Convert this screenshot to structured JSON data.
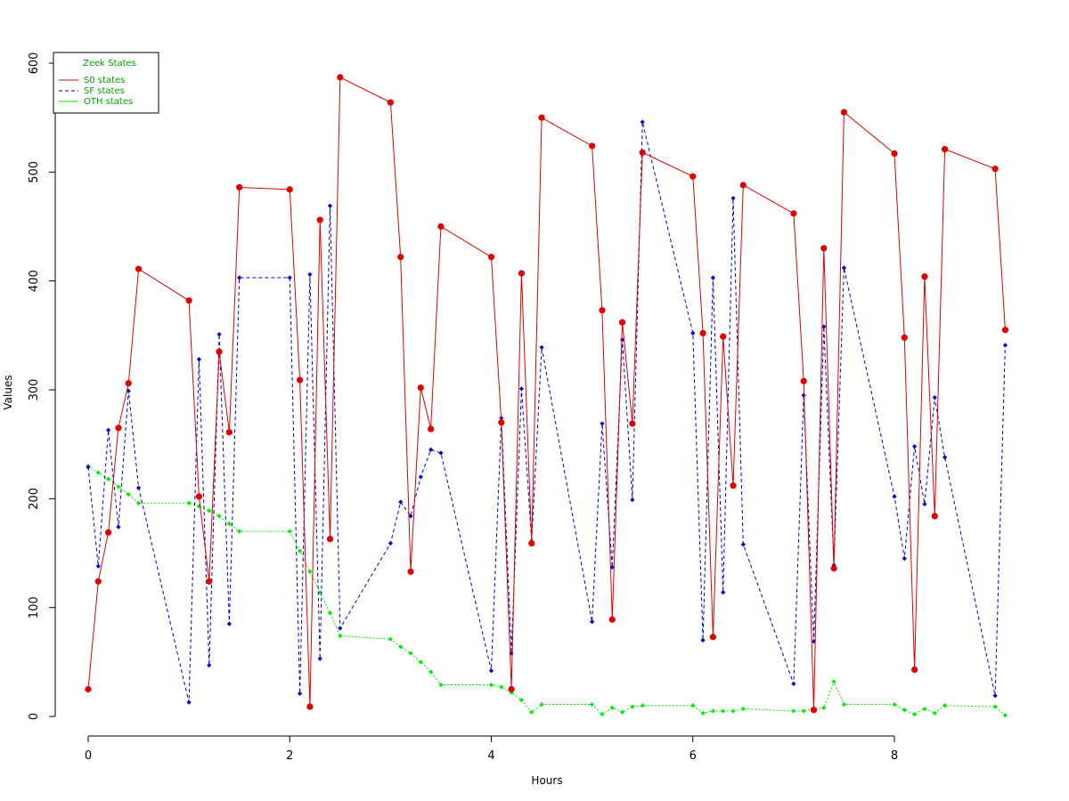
{
  "chart_data": {
    "type": "line",
    "title": "",
    "xlabel": "Hours",
    "ylabel": "Values",
    "xlim": [
      0,
      9.1
    ],
    "ylim": [
      0,
      600
    ],
    "x_ticks": [
      0,
      2,
      4,
      6,
      8
    ],
    "y_ticks": [
      0,
      100,
      200,
      300,
      400,
      500,
      600
    ],
    "grid": false,
    "legend": {
      "title": "Zeek States",
      "placement": "top-left",
      "title_color": "#00a000"
    },
    "series": [
      {
        "name": "S0 states",
        "color": "#e00000",
        "line_style": "solid",
        "marker": "circle",
        "x": [
          0,
          0.1,
          0.2,
          0.3,
          0.4,
          0.5,
          1.0,
          1.1,
          1.2,
          1.3,
          1.4,
          1.5,
          2.0,
          2.1,
          2.2,
          2.3,
          2.4,
          2.5,
          3.0,
          3.1,
          3.2,
          3.3,
          3.4,
          3.5,
          4.0,
          4.1,
          4.2,
          4.3,
          4.4,
          4.5,
          5.0,
          5.1,
          5.2,
          5.3,
          5.4,
          5.5,
          6.0,
          6.1,
          6.2,
          6.3,
          6.4,
          6.5,
          7.0,
          7.1,
          7.2,
          7.3,
          7.4,
          7.5,
          8.0,
          8.1,
          8.2,
          8.3,
          8.4,
          8.5,
          9.0,
          9.1
        ],
        "values": [
          25,
          124,
          169,
          265,
          306,
          411,
          382,
          202,
          124,
          335,
          261,
          486,
          484,
          309,
          9,
          456,
          163,
          587,
          564,
          422,
          133,
          302,
          264,
          450,
          422,
          270,
          25,
          407,
          159,
          550,
          524,
          373,
          89,
          362,
          269,
          518,
          496,
          352,
          73,
          349,
          212,
          488,
          462,
          308,
          6,
          430,
          136,
          555,
          517,
          348,
          43,
          404,
          184,
          521,
          503,
          355
        ]
      },
      {
        "name": "SF states",
        "color": "#0000cc",
        "line_style": "dashed",
        "marker": "diamond",
        "x": [
          0,
          0.1,
          0.2,
          0.3,
          0.4,
          0.5,
          1.0,
          1.1,
          1.2,
          1.3,
          1.4,
          1.5,
          2.0,
          2.1,
          2.2,
          2.3,
          2.4,
          2.5,
          3.0,
          3.1,
          3.2,
          3.3,
          3.4,
          3.5,
          4.0,
          4.1,
          4.2,
          4.3,
          4.4,
          4.5,
          5.0,
          5.1,
          5.2,
          5.3,
          5.4,
          5.5,
          6.0,
          6.1,
          6.2,
          6.3,
          6.4,
          6.5,
          7.0,
          7.1,
          7.2,
          7.3,
          7.4,
          7.5,
          8.0,
          8.1,
          8.2,
          8.3,
          8.4,
          8.5,
          9.0,
          9.1
        ],
        "values": [
          229,
          138,
          263,
          174,
          299,
          210,
          13,
          328,
          47,
          351,
          85,
          403,
          403,
          21,
          406,
          53,
          469,
          81,
          159,
          197,
          184,
          220,
          245,
          242,
          42,
          274,
          58,
          301,
          161,
          339,
          87,
          269,
          137,
          346,
          199,
          546,
          352,
          70,
          403,
          114,
          476,
          158,
          30,
          295,
          69,
          358,
          139,
          412,
          202,
          145,
          248,
          195,
          293,
          238,
          19,
          341
        ]
      },
      {
        "name": "OTH states",
        "color": "#00ee00",
        "line_style": "dotted",
        "marker": "diamond",
        "x": [
          0,
          0.1,
          0.2,
          0.3,
          0.4,
          0.5,
          1.0,
          1.1,
          1.2,
          1.3,
          1.4,
          1.5,
          2.0,
          2.1,
          2.2,
          2.3,
          2.4,
          2.5,
          3.0,
          3.1,
          3.2,
          3.3,
          3.4,
          3.5,
          4.0,
          4.1,
          4.2,
          4.3,
          4.4,
          4.5,
          5.0,
          5.1,
          5.2,
          5.3,
          5.4,
          5.5,
          6.0,
          6.1,
          6.2,
          6.3,
          6.4,
          6.5,
          7.0,
          7.1,
          7.2,
          7.3,
          7.4,
          7.5,
          8.0,
          8.1,
          8.2,
          8.3,
          8.4,
          8.5,
          9.0,
          9.1
        ],
        "values": [
          230,
          224,
          218,
          211,
          204,
          196,
          196,
          193,
          189,
          184,
          177,
          170,
          170,
          152,
          133,
          114,
          95,
          74,
          71,
          64,
          58,
          50,
          41,
          29,
          29,
          27,
          22,
          15,
          4,
          11,
          11,
          2,
          8,
          4,
          9,
          10,
          10,
          3,
          5,
          5,
          5,
          7,
          5,
          5,
          7,
          8,
          32,
          11,
          11,
          6,
          2,
          7,
          3,
          10,
          9,
          1
        ]
      }
    ]
  }
}
